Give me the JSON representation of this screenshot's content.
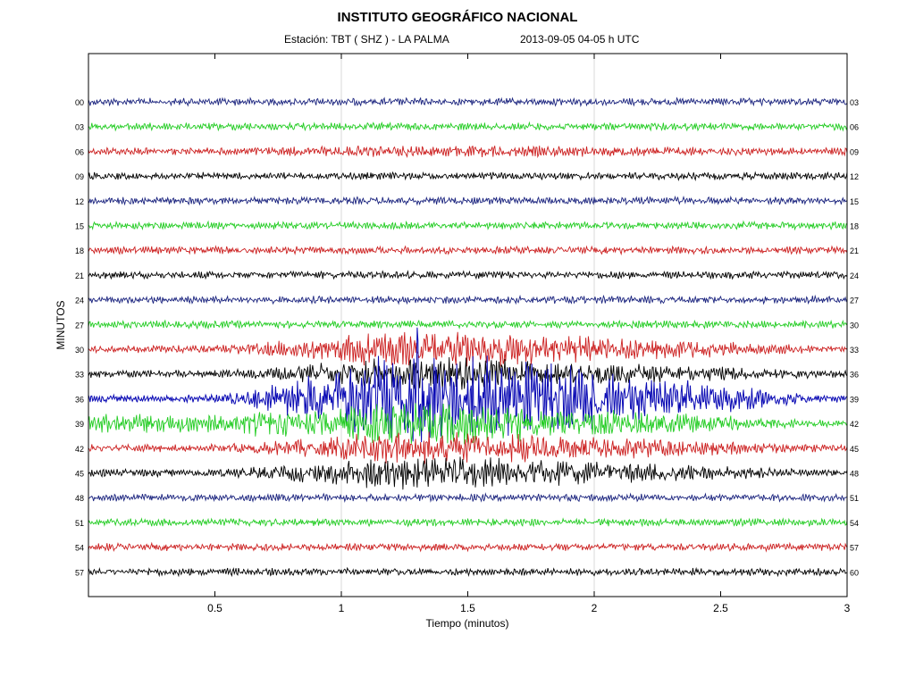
{
  "header": {
    "title": "INSTITUTO GEOGRÁFICO NACIONAL",
    "station": "Estación:  TBT ( SHZ ) - LA PALMA",
    "datetime": "2013-09-05  04-05 h UTC"
  },
  "chart_data": {
    "type": "line",
    "subtype": "helicorder",
    "title": "INSTITUTO GEOGRÁFICO NACIONAL",
    "xlabel": "Tiempo (minutos)",
    "ylabel": "MINUTOS",
    "xlim": [
      0,
      3
    ],
    "x_ticks": [
      0.5,
      1,
      1.5,
      2,
      2.5,
      3
    ],
    "x_tick_labels": [
      "0.5",
      "1",
      "1.5",
      "2",
      "2.5",
      "3"
    ],
    "vertical_gridlines_at": [
      1,
      2
    ],
    "event_window_minutes": [
      0.45,
      2.9
    ],
    "event_peak_minutes": [
      1.15,
      1.55
    ],
    "traces": [
      {
        "left_label": "00",
        "right_label": "03",
        "color": "#1a237e",
        "activity": 0.0
      },
      {
        "left_label": "03",
        "right_label": "06",
        "color": "#22cc22",
        "activity": 0.0
      },
      {
        "left_label": "06",
        "right_label": "09",
        "color": "#cc2020",
        "activity": 0.05
      },
      {
        "left_label": "09",
        "right_label": "12",
        "color": "#000000",
        "activity": 0.0
      },
      {
        "left_label": "12",
        "right_label": "15",
        "color": "#1a237e",
        "activity": 0.0
      },
      {
        "left_label": "15",
        "right_label": "18",
        "color": "#22cc22",
        "activity": 0.0
      },
      {
        "left_label": "18",
        "right_label": "21",
        "color": "#cc2020",
        "activity": 0.0
      },
      {
        "left_label": "21",
        "right_label": "24",
        "color": "#000000",
        "activity": 0.0
      },
      {
        "left_label": "24",
        "right_label": "27",
        "color": "#1a237e",
        "activity": 0.0
      },
      {
        "left_label": "27",
        "right_label": "30",
        "color": "#22cc22",
        "activity": 0.0
      },
      {
        "left_label": "30",
        "right_label": "33",
        "color": "#cc2020",
        "activity": 0.35
      },
      {
        "left_label": "33",
        "right_label": "36",
        "color": "#000000",
        "activity": 0.3
      },
      {
        "left_label": "36",
        "right_label": "39",
        "color": "#0a0ab4",
        "activity": 1.0
      },
      {
        "left_label": "39",
        "right_label": "42",
        "color": "#22cc22",
        "activity": 0.4
      },
      {
        "left_label": "42",
        "right_label": "45",
        "color": "#cc2020",
        "activity": 0.3
      },
      {
        "left_label": "45",
        "right_label": "48",
        "color": "#000000",
        "activity": 0.3
      },
      {
        "left_label": "48",
        "right_label": "51",
        "color": "#1a237e",
        "activity": 0.0
      },
      {
        "left_label": "51",
        "right_label": "54",
        "color": "#22cc22",
        "activity": 0.0
      },
      {
        "left_label": "54",
        "right_label": "57",
        "color": "#cc2020",
        "activity": 0.0
      },
      {
        "left_label": "57",
        "right_label": "60",
        "color": "#000000",
        "activity": 0.0
      }
    ]
  }
}
